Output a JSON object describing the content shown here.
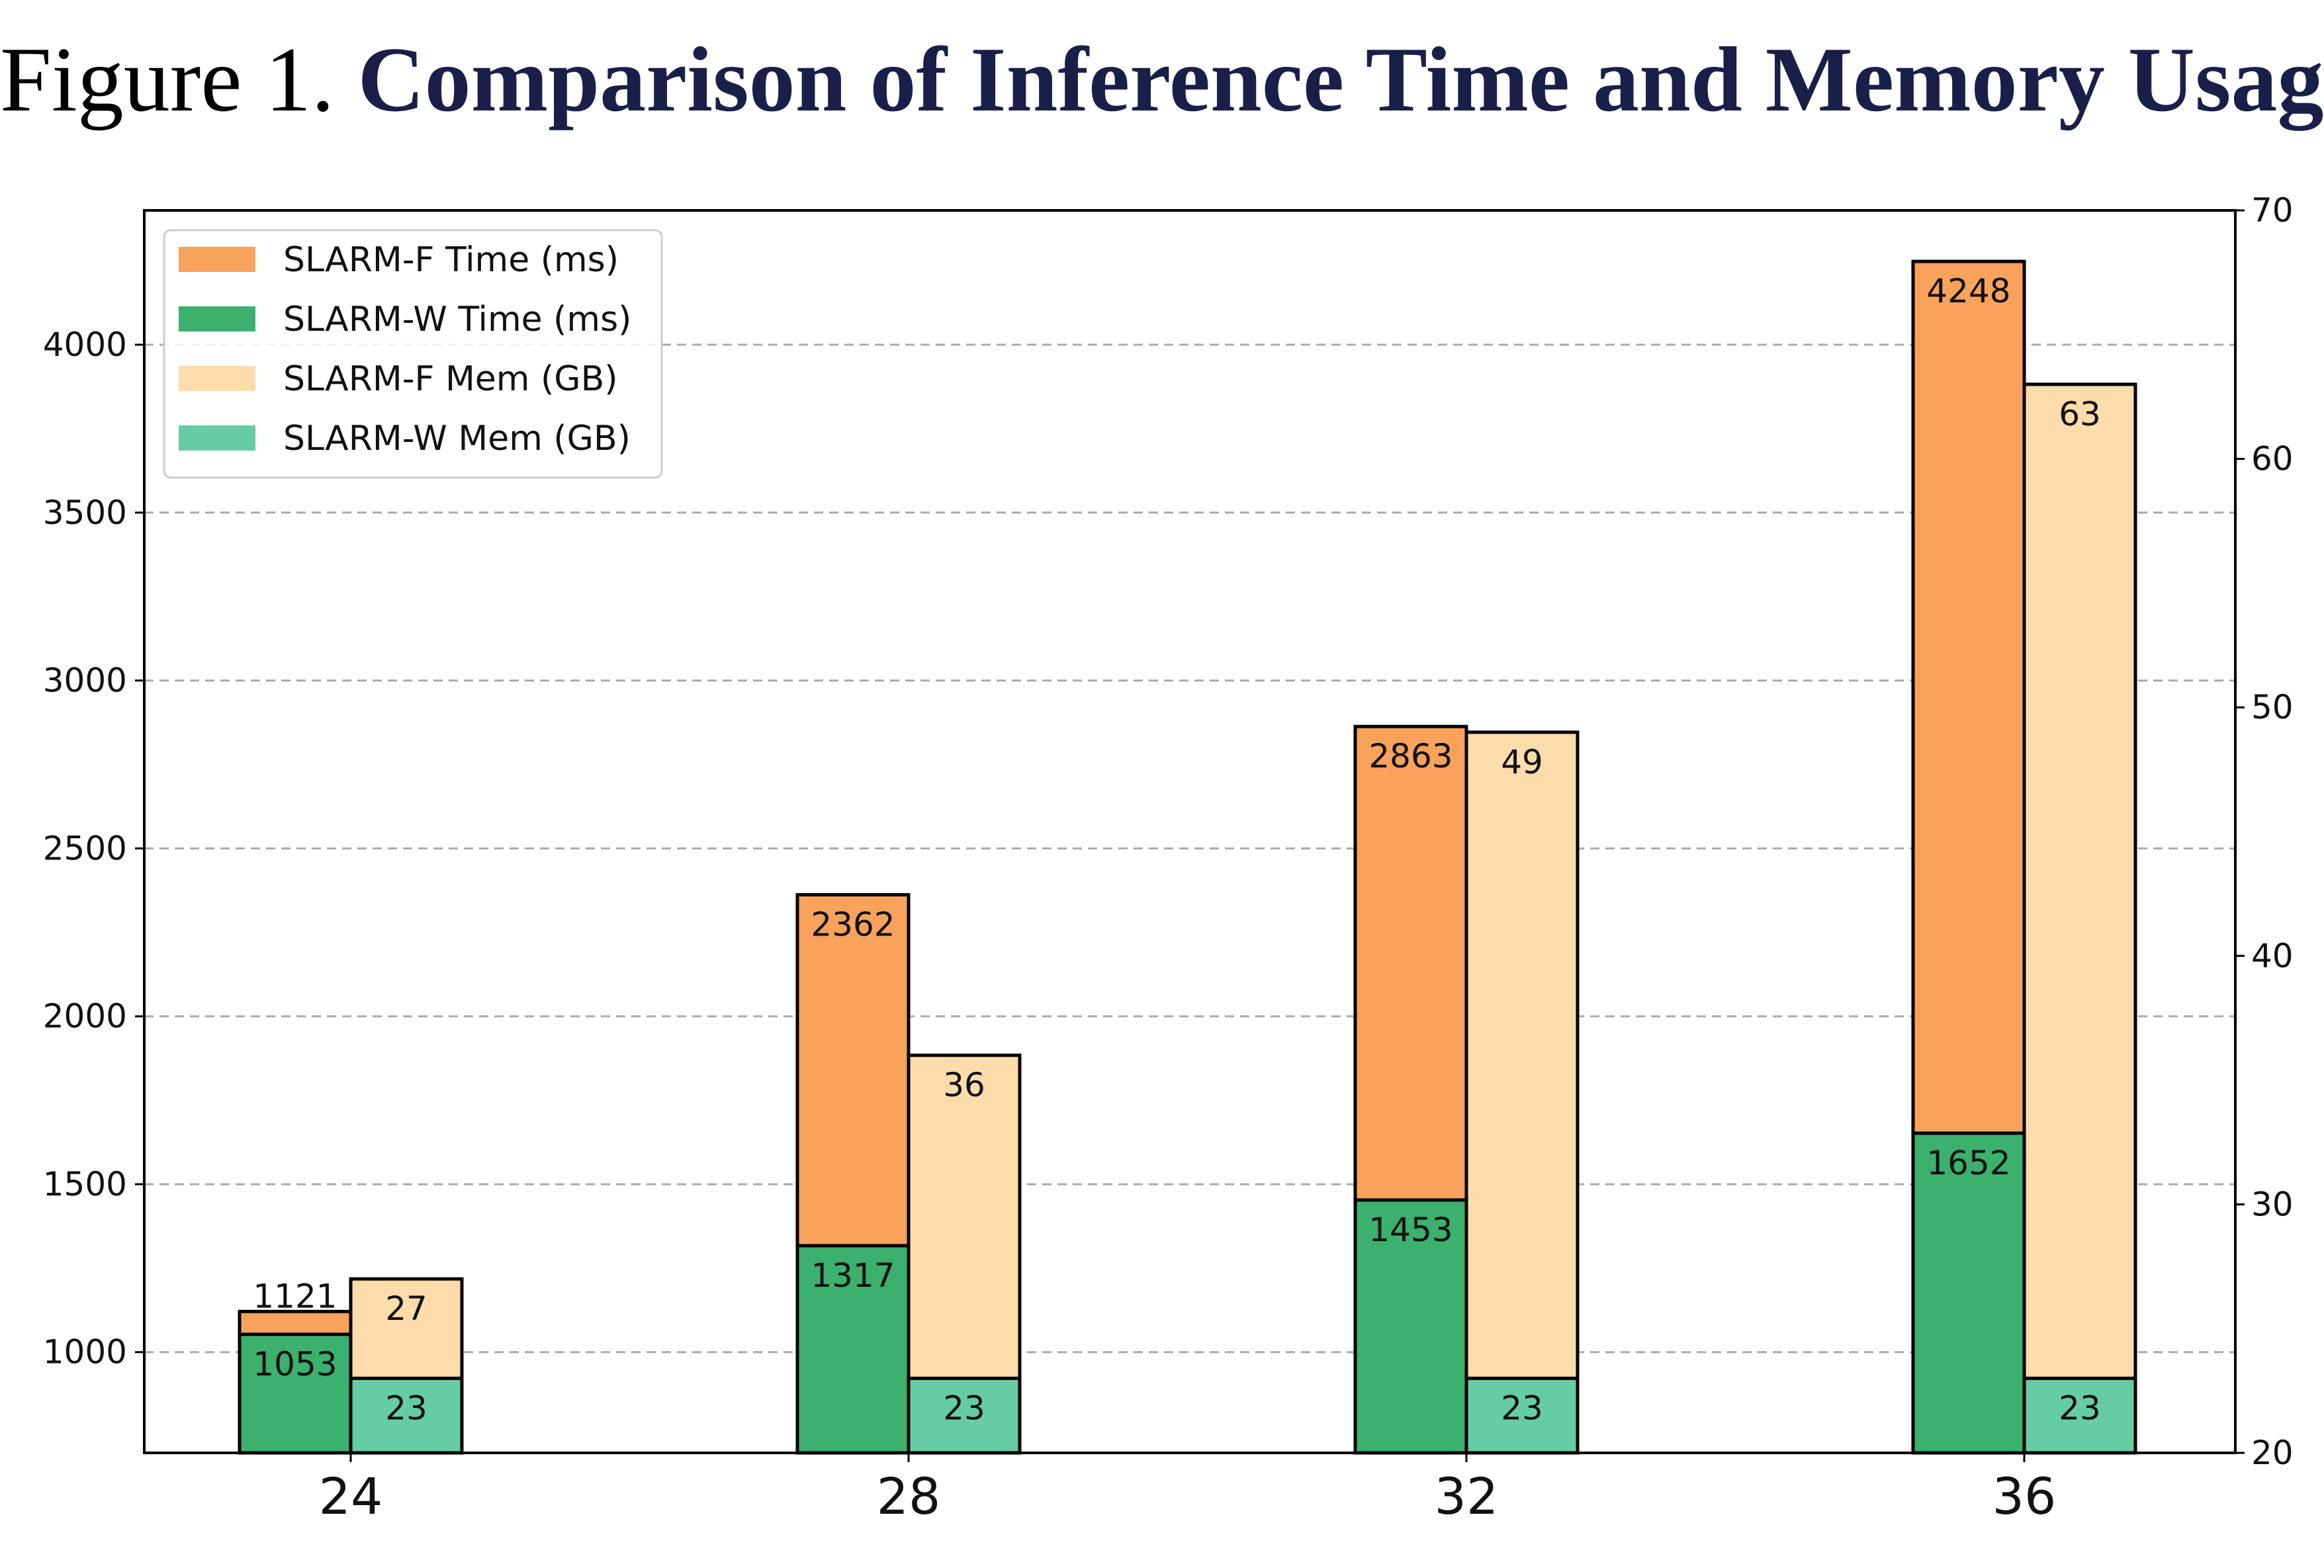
{
  "title": {
    "prefix": "Figure 1.",
    "main": "Comparison of Inference Time and Memory Usage"
  },
  "chart_data": {
    "type": "bar",
    "categories": [
      "24",
      "28",
      "32",
      "36"
    ],
    "y_left": {
      "lim": [
        700,
        4400
      ],
      "ticks": [
        1000,
        1500,
        2000,
        2500,
        3000,
        3500,
        4000
      ]
    },
    "y_right": {
      "lim": [
        20,
        70
      ],
      "ticks": [
        20,
        30,
        40,
        50,
        60,
        70
      ]
    },
    "grid": "horizontal dashed",
    "legend_position": "top-left",
    "series": [
      {
        "name": "SLARM-F Time (ms)",
        "axis": "left",
        "color": "#f9a25c",
        "values": [
          1121,
          2362,
          2863,
          4248
        ],
        "labels": [
          "1121",
          "2362",
          "2863",
          "4248"
        ]
      },
      {
        "name": "SLARM-W Time (ms)",
        "axis": "left",
        "color": "#3cb06d",
        "values": [
          1053,
          1317,
          1453,
          1652
        ],
        "labels": [
          "1053",
          "1317",
          "1453",
          "1652"
        ]
      },
      {
        "name": "SLARM-F Mem (GB)",
        "axis": "right",
        "color": "#fddcab",
        "values": [
          27,
          36,
          49,
          63
        ],
        "labels": [
          "27",
          "36",
          "49",
          "63"
        ]
      },
      {
        "name": "SLARM-W Mem (GB)",
        "axis": "right",
        "color": "#66cca4",
        "values": [
          23,
          23,
          23,
          23
        ],
        "labels": [
          "23",
          "23",
          "23",
          "23"
        ]
      }
    ]
  }
}
